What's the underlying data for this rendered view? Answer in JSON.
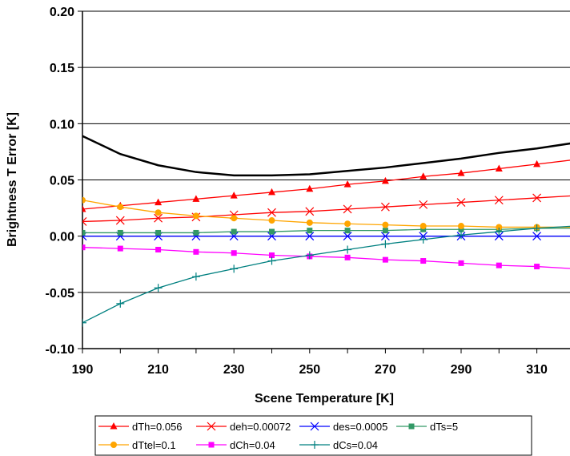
{
  "chart_data": {
    "type": "line",
    "title": "",
    "xlabel": "Scene Temperature [K]",
    "ylabel": "Brightness T Error [K]",
    "xlim": [
      190,
      320
    ],
    "ylim": [
      -0.1,
      0.2
    ],
    "x_ticks": [
      "190",
      "210",
      "230",
      "250",
      "270",
      "290",
      "310"
    ],
    "y_ticks": [
      "0.20",
      "0.15",
      "0.10",
      "0.05",
      "0.00",
      "-0.05",
      "-0.10"
    ],
    "x_tick_values": [
      190,
      210,
      230,
      250,
      270,
      290,
      310
    ],
    "y_tick_values": [
      0.2,
      0.15,
      0.1,
      0.05,
      0.0,
      -0.05,
      -0.1
    ],
    "grid": {
      "horizontal": true,
      "vertical": false
    },
    "legend_position": "bottom",
    "x": [
      190,
      200,
      210,
      220,
      230,
      240,
      250,
      260,
      270,
      280,
      290,
      300,
      310,
      320
    ],
    "series": [
      {
        "name": "",
        "color": "#000000",
        "marker": "none",
        "values": [
          0.089,
          0.073,
          0.063,
          0.057,
          0.054,
          0.054,
          0.055,
          0.058,
          0.061,
          0.065,
          0.069,
          0.074,
          0.078,
          0.083
        ]
      },
      {
        "name": "dTh=0.056",
        "color": "#ff0000",
        "marker": "triangle",
        "values": [
          0.024,
          0.027,
          0.03,
          0.033,
          0.036,
          0.039,
          0.042,
          0.046,
          0.049,
          0.053,
          0.056,
          0.06,
          0.064,
          0.068
        ]
      },
      {
        "name": "deh=0.00072",
        "color": "#ff0000",
        "marker": "x",
        "values": [
          0.013,
          0.014,
          0.016,
          0.017,
          0.019,
          0.021,
          0.022,
          0.024,
          0.026,
          0.028,
          0.03,
          0.032,
          0.034,
          0.036
        ]
      },
      {
        "name": "des=0.0005",
        "color": "#0000ff",
        "marker": "x",
        "values": [
          0.0,
          0.0,
          0.0,
          0.0,
          0.0,
          0.0,
          0.0,
          0.0,
          0.0,
          0.0,
          0.0,
          0.0,
          0.0,
          0.0
        ]
      },
      {
        "name": "dTs=5",
        "color": "#339966",
        "marker": "square",
        "values": [
          0.003,
          0.003,
          0.003,
          0.003,
          0.004,
          0.004,
          0.005,
          0.005,
          0.005,
          0.006,
          0.006,
          0.006,
          0.007,
          0.007
        ]
      },
      {
        "name": "dTtel=0.1",
        "color": "#ffa500",
        "marker": "circle",
        "values": [
          0.032,
          0.026,
          0.021,
          0.018,
          0.016,
          0.014,
          0.012,
          0.011,
          0.01,
          0.009,
          0.009,
          0.008,
          0.008,
          0.008
        ]
      },
      {
        "name": "dCh=0.04",
        "color": "#ff00ff",
        "marker": "square",
        "values": [
          -0.01,
          -0.011,
          -0.012,
          -0.014,
          -0.015,
          -0.017,
          -0.018,
          -0.019,
          -0.021,
          -0.022,
          -0.024,
          -0.026,
          -0.027,
          -0.029
        ]
      },
      {
        "name": "dCs=0.04",
        "color": "#008080",
        "marker": "plus",
        "values": [
          -0.077,
          -0.06,
          -0.046,
          -0.036,
          -0.029,
          -0.022,
          -0.017,
          -0.012,
          -0.007,
          -0.003,
          0.001,
          0.004,
          0.007,
          0.009
        ]
      }
    ],
    "legend_rows": [
      [
        "dTh=0.056",
        "deh=0.00072",
        "des=0.0005",
        "dTs=5"
      ],
      [
        "dTtel=0.1",
        "dCh=0.04",
        "dCs=0.04"
      ]
    ]
  }
}
